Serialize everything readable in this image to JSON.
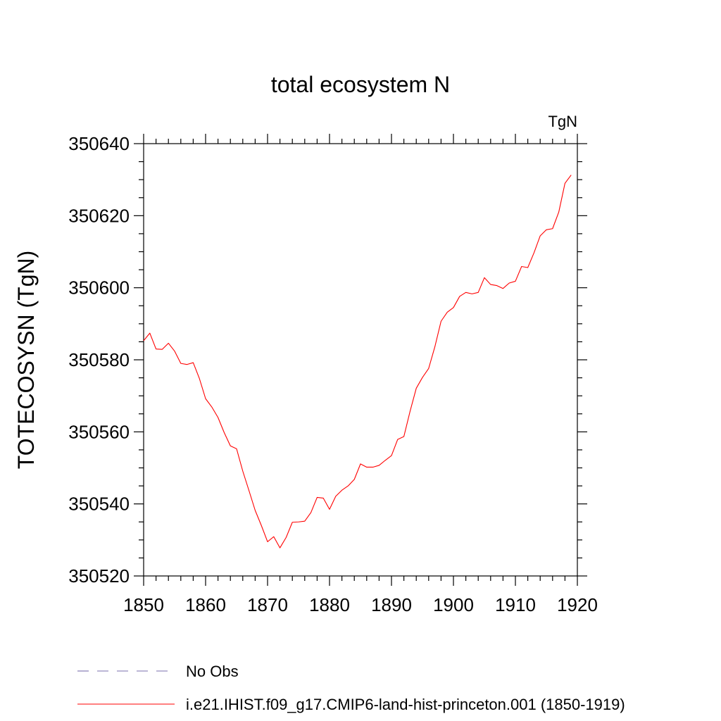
{
  "chart_data": {
    "type": "line",
    "title": "total ecosystem N",
    "units_label": "TgN",
    "xlabel": "",
    "ylabel": "TOTECOSYSN  (TgN)",
    "xlim": [
      1850,
      1920
    ],
    "ylim": [
      350520,
      350640
    ],
    "xticks": [
      1850,
      1860,
      1870,
      1880,
      1890,
      1900,
      1910,
      1920
    ],
    "yticks": [
      350520,
      350540,
      350560,
      350580,
      350600,
      350620,
      350640
    ],
    "grid": false,
    "legend_position": "bottom",
    "series": [
      {
        "name": "No Obs",
        "color": "#7a6fae",
        "dash": "dashed",
        "x": [],
        "y": []
      },
      {
        "name": "i.e21.IHIST.f09_g17.CMIP6-land-hist-princeton.001 (1850-1919)",
        "color": "#ff0000",
        "dash": "solid",
        "x": [
          1850,
          1851,
          1852,
          1853,
          1854,
          1855,
          1856,
          1857,
          1858,
          1859,
          1860,
          1861,
          1862,
          1863,
          1864,
          1865,
          1866,
          1867,
          1868,
          1869,
          1870,
          1871,
          1872,
          1873,
          1874,
          1875,
          1876,
          1877,
          1878,
          1879,
          1880,
          1881,
          1882,
          1883,
          1884,
          1885,
          1886,
          1887,
          1888,
          1889,
          1890,
          1891,
          1892,
          1893,
          1894,
          1895,
          1896,
          1897,
          1898,
          1899,
          1900,
          1901,
          1902,
          1903,
          1904,
          1905,
          1906,
          1907,
          1908,
          1909,
          1910,
          1911,
          1912,
          1913,
          1914,
          1915,
          1916,
          1917,
          1918,
          1919
        ],
        "y": [
          350585.3,
          350587.4,
          350583.0,
          350582.9,
          350584.6,
          350582.4,
          350579.0,
          350578.7,
          350579.2,
          350574.8,
          350569.2,
          350566.9,
          350564.0,
          350559.8,
          350556.1,
          350555.3,
          350549.1,
          350543.7,
          350538.2,
          350534.0,
          350529.5,
          350530.9,
          350527.8,
          350530.7,
          350534.9,
          350535.0,
          350535.2,
          350537.6,
          350541.8,
          350541.6,
          350538.5,
          350542.1,
          350543.8,
          350545.0,
          350546.8,
          350551.1,
          350550.2,
          350550.2,
          350550.7,
          350552.1,
          350553.4,
          350557.9,
          350558.7,
          350565.7,
          350572.1,
          350575.1,
          350577.6,
          350583.6,
          350590.7,
          350593.2,
          350594.5,
          350597.6,
          350598.7,
          350598.3,
          350598.7,
          350602.8,
          350600.9,
          350600.6,
          350599.8,
          350601.3,
          350601.8,
          350605.9,
          350605.6,
          350609.7,
          350614.4,
          350616.1,
          350616.4,
          350621.0,
          350629.0,
          350631.3
        ]
      }
    ]
  }
}
